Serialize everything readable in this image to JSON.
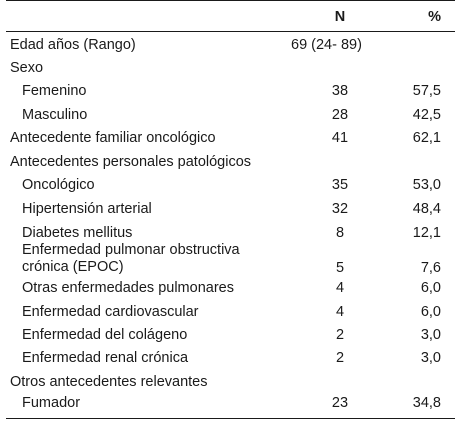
{
  "header": {
    "n": "N",
    "pct": "%"
  },
  "rows": [
    {
      "label": "Edad años (Rango)",
      "n": "69 (24- 89)",
      "pct": ""
    },
    {
      "label": "Sexo",
      "n": "",
      "pct": ""
    },
    {
      "label": "Femenino",
      "n": "38",
      "pct": "57,5"
    },
    {
      "label": "Masculino",
      "n": "28",
      "pct": "42,5"
    },
    {
      "label": "Antecedente familiar oncológico",
      "n": "41",
      "pct": "62,1"
    },
    {
      "label": "Antecedentes personales patológicos",
      "n": "",
      "pct": ""
    },
    {
      "label": "Oncológico",
      "n": "35",
      "pct": "53,0"
    },
    {
      "label": "Hipertensión arterial",
      "n": "32",
      "pct": "48,4"
    },
    {
      "label": "Diabetes mellitus",
      "n": "8",
      "pct": "12,1"
    },
    {
      "label_line1": "Enfermedad pulmonar obstructiva",
      "label_line2": "crónica (EPOC)",
      "n": "5",
      "pct": "7,6"
    },
    {
      "label": "Otras enfermedades pulmonares",
      "n": "4",
      "pct": "6,0"
    },
    {
      "label": "Enfermedad cardiovascular",
      "n": "4",
      "pct": "6,0"
    },
    {
      "label": "Enfermedad del colágeno",
      "n": "2",
      "pct": "3,0"
    },
    {
      "label": "Enfermedad renal crónica",
      "n": "2",
      "pct": "3,0"
    },
    {
      "label": "Otros antecedentes relevantes",
      "n": "",
      "pct": ""
    },
    {
      "label": "Fumador",
      "n": "23",
      "pct": "34,8"
    }
  ]
}
